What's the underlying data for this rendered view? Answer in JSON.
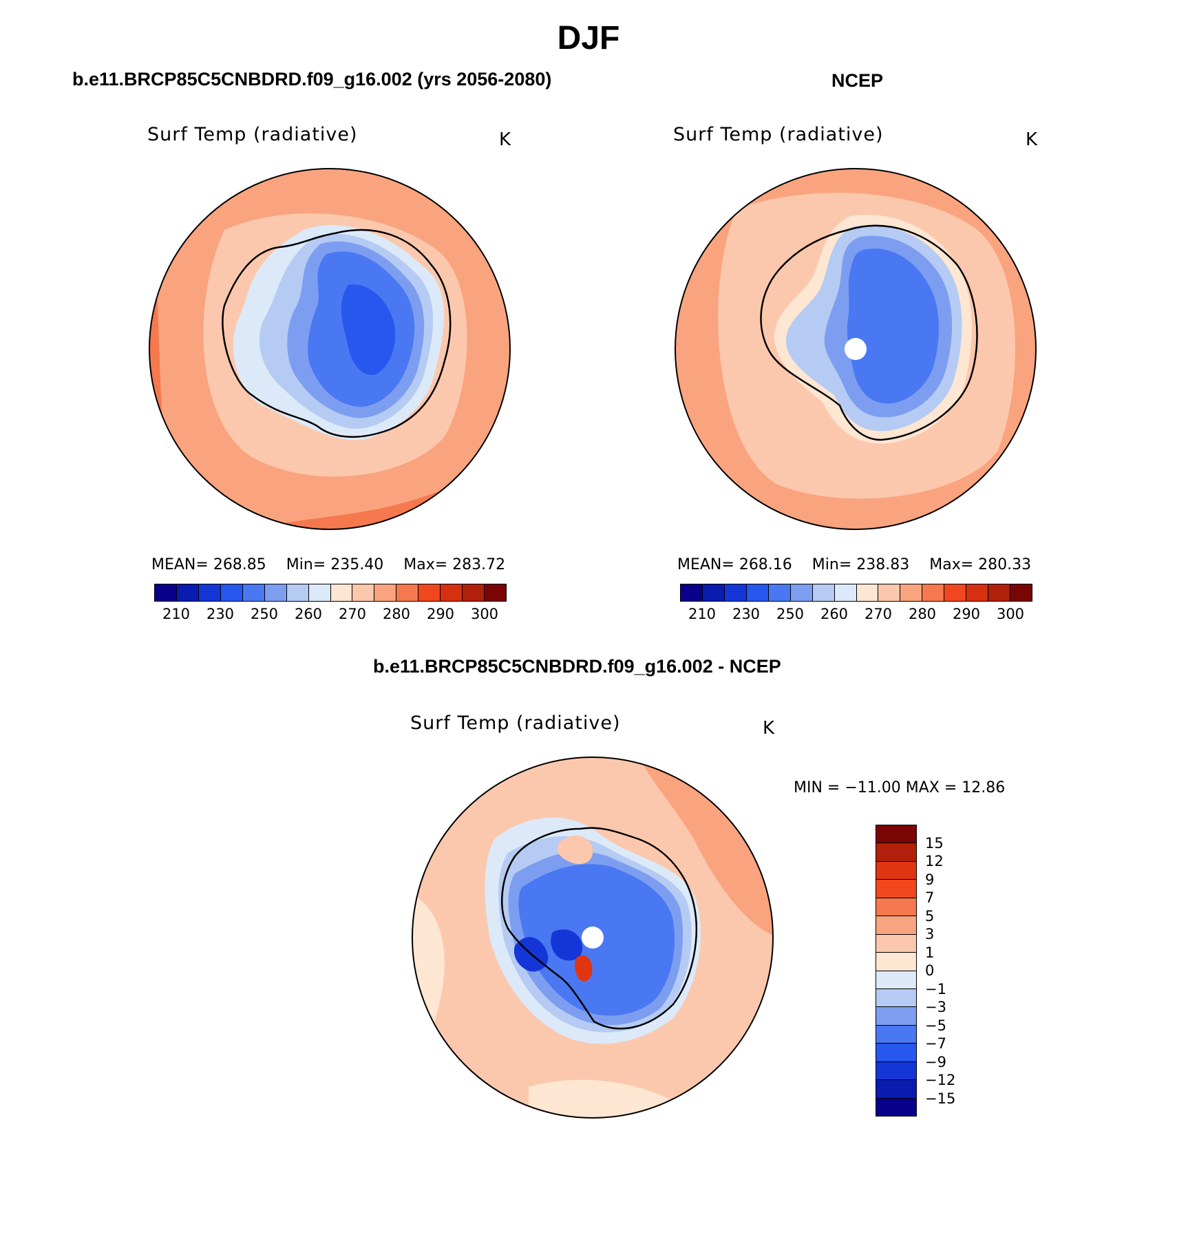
{
  "page": {
    "title": "DJF"
  },
  "panel_a": {
    "case_title": "b.e11.BRCP85C5CNBDRD.f09_g16.002 (yrs 2056-2080)",
    "variable": "Surf Temp (radiative)",
    "units": "K",
    "stats": {
      "mean": "MEAN= 268.85",
      "min": "Min= 235.40",
      "max": "Max= 283.72"
    },
    "colorbar_ticks": [
      "210",
      "230",
      "250",
      "260",
      "270",
      "280",
      "290",
      "300"
    ]
  },
  "panel_b": {
    "case_title": "NCEP",
    "variable": "Surf Temp (radiative)",
    "units": "K",
    "stats": {
      "mean": "MEAN= 268.16",
      "min": "Min= 238.83",
      "max": "Max= 280.33"
    },
    "colorbar_ticks": [
      "210",
      "230",
      "250",
      "260",
      "270",
      "280",
      "290",
      "300"
    ]
  },
  "panel_c": {
    "case_title": "b.e11.BRCP85C5CNBDRD.f09_g16.002 - NCEP",
    "variable": "Surf Temp (radiative)",
    "units": "K",
    "minmax": "MIN = −11.00 MAX =   12.86",
    "colorbar_ticks": [
      "15",
      "12",
      "9",
      "7",
      "5",
      "3",
      "1",
      "0",
      "−1",
      "−3",
      "−5",
      "−7",
      "−9",
      "−12",
      "−15"
    ]
  },
  "colors": {
    "abs_scale": [
      "#08008a",
      "#0a1bb0",
      "#1436d6",
      "#2757ee",
      "#4a78f2",
      "#7d9ef0",
      "#b5cbf3",
      "#dce9f8",
      "#fde6d2",
      "#fcc8ad",
      "#f9a47e",
      "#f5784e",
      "#f0471e",
      "#d73010",
      "#b0200a",
      "#7a0505"
    ],
    "diff_scale": [
      "#7a0505",
      "#b0200a",
      "#df3510",
      "#f0471e",
      "#f5784e",
      "#f9a47e",
      "#fcc8ad",
      "#fde6d2",
      "#dce9f8",
      "#b5cbf3",
      "#7d9ef0",
      "#4a78f2",
      "#2757ee",
      "#1436d6",
      "#0a1bb0",
      "#08008a"
    ]
  }
}
